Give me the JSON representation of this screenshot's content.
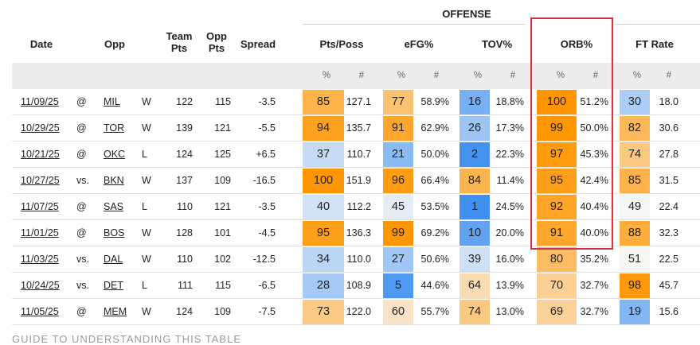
{
  "group_title": "OFFENSE",
  "headers": {
    "date": "Date",
    "opp": "Opp",
    "team_pts_1": "Team",
    "team_pts_2": "Pts",
    "opp_pts_1": "Opp",
    "opp_pts_2": "Pts",
    "spread": "Spread",
    "pts_poss": "Pts/Poss",
    "efg": "eFG%",
    "tov": "TOV%",
    "orb": "ORB%",
    "ft_rate": "FT Rate"
  },
  "sub_headers": {
    "pct": "%",
    "num": "#"
  },
  "rows": [
    {
      "date": "11/09/25",
      "loc": "@",
      "opp": "MIL",
      "result": "W",
      "team_pts": "122",
      "opp_pts": "115",
      "spread": "-3.5",
      "pp_pct": "85",
      "pp_val": "127.1",
      "efg_pct": "77",
      "efg_val": "58.9%",
      "tov_pct": "16",
      "tov_val": "18.8%",
      "orb_pct": "100",
      "orb_val": "51.2%",
      "ft_pct": "30",
      "ft_val": "18.0"
    },
    {
      "date": "10/29/25",
      "loc": "@",
      "opp": "TOR",
      "result": "W",
      "team_pts": "139",
      "opp_pts": "121",
      "spread": "-5.5",
      "pp_pct": "94",
      "pp_val": "135.7",
      "efg_pct": "91",
      "efg_val": "62.9%",
      "tov_pct": "26",
      "tov_val": "17.3%",
      "orb_pct": "99",
      "orb_val": "50.0%",
      "ft_pct": "82",
      "ft_val": "30.6"
    },
    {
      "date": "10/21/25",
      "loc": "@",
      "opp": "OKC",
      "result": "L",
      "team_pts": "124",
      "opp_pts": "125",
      "spread": "+6.5",
      "pp_pct": "37",
      "pp_val": "110.7",
      "efg_pct": "21",
      "efg_val": "50.0%",
      "tov_pct": "2",
      "tov_val": "22.3%",
      "orb_pct": "97",
      "orb_val": "45.3%",
      "ft_pct": "74",
      "ft_val": "27.8"
    },
    {
      "date": "10/27/25",
      "loc": "vs.",
      "opp": "BKN",
      "result": "W",
      "team_pts": "137",
      "opp_pts": "109",
      "spread": "-16.5",
      "pp_pct": "100",
      "pp_val": "151.9",
      "efg_pct": "96",
      "efg_val": "66.4%",
      "tov_pct": "84",
      "tov_val": "11.4%",
      "orb_pct": "95",
      "orb_val": "42.4%",
      "ft_pct": "85",
      "ft_val": "31.5"
    },
    {
      "date": "11/07/25",
      "loc": "@",
      "opp": "SAS",
      "result": "L",
      "team_pts": "110",
      "opp_pts": "121",
      "spread": "-3.5",
      "pp_pct": "40",
      "pp_val": "112.2",
      "efg_pct": "45",
      "efg_val": "53.5%",
      "tov_pct": "1",
      "tov_val": "24.5%",
      "orb_pct": "92",
      "orb_val": "40.4%",
      "ft_pct": "49",
      "ft_val": "22.4"
    },
    {
      "date": "11/01/25",
      "loc": "@",
      "opp": "BOS",
      "result": "W",
      "team_pts": "128",
      "opp_pts": "101",
      "spread": "-4.5",
      "pp_pct": "95",
      "pp_val": "136.3",
      "efg_pct": "99",
      "efg_val": "69.2%",
      "tov_pct": "10",
      "tov_val": "20.0%",
      "orb_pct": "91",
      "orb_val": "40.0%",
      "ft_pct": "88",
      "ft_val": "32.3"
    },
    {
      "date": "11/03/25",
      "loc": "vs.",
      "opp": "DAL",
      "result": "W",
      "team_pts": "110",
      "opp_pts": "102",
      "spread": "-12.5",
      "pp_pct": "34",
      "pp_val": "110.0",
      "efg_pct": "27",
      "efg_val": "50.6%",
      "tov_pct": "39",
      "tov_val": "16.0%",
      "orb_pct": "80",
      "orb_val": "35.2%",
      "ft_pct": "51",
      "ft_val": "22.5"
    },
    {
      "date": "10/24/25",
      "loc": "vs.",
      "opp": "DET",
      "result": "L",
      "team_pts": "111",
      "opp_pts": "115",
      "spread": "-6.5",
      "pp_pct": "28",
      "pp_val": "108.9",
      "efg_pct": "5",
      "efg_val": "44.6%",
      "tov_pct": "64",
      "tov_val": "13.9%",
      "orb_pct": "70",
      "orb_val": "32.7%",
      "ft_pct": "98",
      "ft_val": "45.7"
    },
    {
      "date": "11/05/25",
      "loc": "@",
      "opp": "MEM",
      "result": "W",
      "team_pts": "124",
      "opp_pts": "109",
      "spread": "-7.5",
      "pp_pct": "73",
      "pp_val": "122.0",
      "efg_pct": "60",
      "efg_val": "55.7%",
      "tov_pct": "74",
      "tov_val": "13.0%",
      "orb_pct": "69",
      "orb_val": "32.7%",
      "ft_pct": "19",
      "ft_val": "15.6"
    }
  ],
  "footer_text": "GUIDE TO UNDERSTANDING THIS TABLE",
  "colors": {
    "highlight": "#d6303a",
    "low_blue": "#3b8ef0",
    "high_orange": "#ff9500",
    "subheader_bg": "#ececec"
  }
}
